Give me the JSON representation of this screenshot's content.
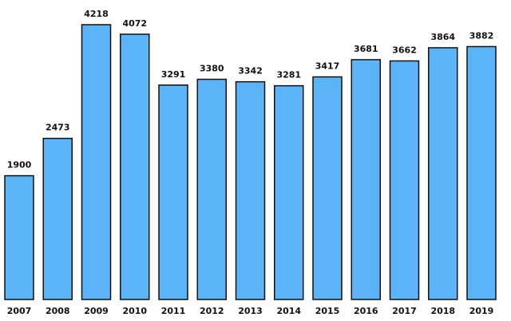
{
  "chart_data": {
    "type": "bar",
    "categories": [
      "2007",
      "2008",
      "2009",
      "2010",
      "2011",
      "2012",
      "2013",
      "2014",
      "2015",
      "2016",
      "2017",
      "2018",
      "2019"
    ],
    "values": [
      1900,
      2473,
      4218,
      4072,
      3291,
      3380,
      3342,
      3281,
      3417,
      3681,
      3662,
      3864,
      3882
    ],
    "color": "#5ab4f7"
  }
}
